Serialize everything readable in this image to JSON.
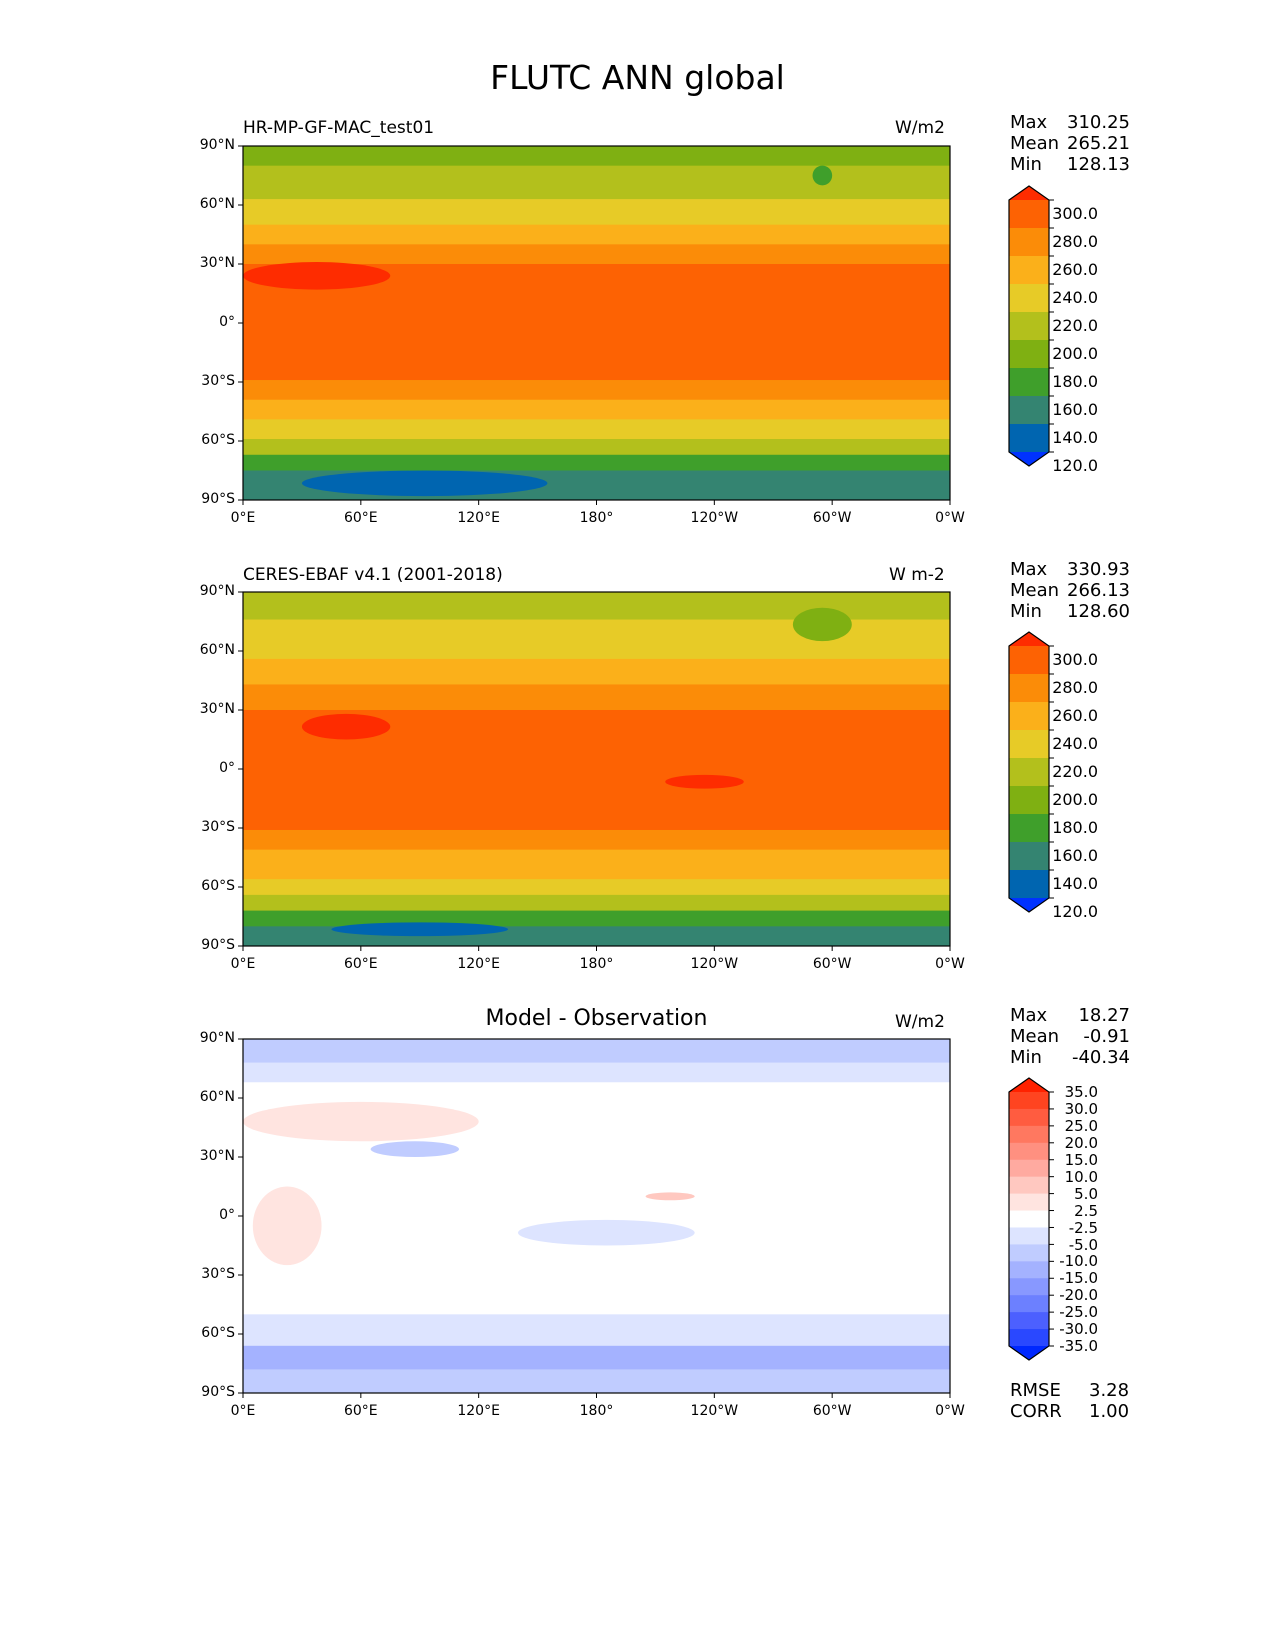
{
  "chart_data": {
    "type": "heatmap",
    "title": "FLUTC ANN global",
    "xticks": [
      "0°E",
      "60°E",
      "120°E",
      "180°",
      "120°W",
      "60°W",
      "0°W"
    ],
    "yticks": [
      "90°N",
      "60°N",
      "30°N",
      "0°",
      "30°S",
      "60°S",
      "90°S"
    ],
    "panels": [
      {
        "title_left": "HR-MP-GF-MAC_test01",
        "title_right": "W/m2",
        "stats": [
          {
            "label": "Max",
            "value": "310.25"
          },
          {
            "label": "Mean",
            "value": "265.21"
          },
          {
            "label": "Min",
            "value": "128.13"
          }
        ],
        "levels": [
          "300.0",
          "280.0",
          "260.0",
          "240.0",
          "220.0",
          "200.0",
          "180.0",
          "160.0",
          "140.0",
          "120.0"
        ],
        "colors": [
          "#fe2c00",
          "#fd6203",
          "#fb8c08",
          "#fbb01a",
          "#e7cb27",
          "#b3c01c",
          "#7fb012",
          "#3f9f2b",
          "#348471",
          "#0065b0",
          "#0032ff"
        ],
        "zonal_bands": [
          [
            90,
            80,
            190
          ],
          [
            80,
            63,
            210
          ],
          [
            63,
            50,
            230
          ],
          [
            50,
            40,
            250
          ],
          [
            40,
            30,
            270
          ],
          [
            30,
            -29,
            290
          ],
          [
            -29,
            -39,
            270
          ],
          [
            -39,
            -49,
            250
          ],
          [
            -49,
            -59,
            230
          ],
          [
            -59,
            -67,
            210
          ],
          [
            -67,
            -75,
            170
          ],
          [
            -75,
            -90,
            150
          ]
        ],
        "patches": [
          {
            "lon": [
              0,
              75
            ],
            "lat": [
              17,
              31
            ],
            "value": 305
          },
          {
            "lon": [
              30,
              155
            ],
            "lat": [
              -75,
              -88
            ],
            "value": 135
          },
          {
            "lon": [
              290,
              300
            ],
            "lat": [
              70,
              80
            ],
            "value": 170
          }
        ]
      },
      {
        "title_left": "CERES-EBAF v4.1 (2001-2018)",
        "title_right": "W m-2",
        "stats": [
          {
            "label": "Max",
            "value": "330.93"
          },
          {
            "label": "Mean",
            "value": "266.13"
          },
          {
            "label": "Min",
            "value": "128.60"
          }
        ],
        "levels": [
          "300.0",
          "280.0",
          "260.0",
          "240.0",
          "220.0",
          "200.0",
          "180.0",
          "160.0",
          "140.0",
          "120.0"
        ],
        "colors": [
          "#fe2c00",
          "#fd6203",
          "#fb8c08",
          "#fbb01a",
          "#e7cb27",
          "#b3c01c",
          "#7fb012",
          "#3f9f2b",
          "#348471",
          "#0065b0",
          "#0032ff"
        ],
        "zonal_bands": [
          [
            90,
            76,
            210
          ],
          [
            76,
            56,
            230
          ],
          [
            56,
            43,
            250
          ],
          [
            43,
            30,
            270
          ],
          [
            30,
            -31,
            290
          ],
          [
            -31,
            -41,
            270
          ],
          [
            -41,
            -56,
            250
          ],
          [
            -56,
            -64,
            230
          ],
          [
            -64,
            -72,
            210
          ],
          [
            -72,
            -80,
            170
          ],
          [
            -80,
            -90,
            150
          ]
        ],
        "patches": [
          {
            "lon": [
              30,
              75
            ],
            "lat": [
              15,
              28
            ],
            "value": 305
          },
          {
            "lon": [
              215,
              255
            ],
            "lat": [
              -3,
              -10
            ],
            "value": 305
          },
          {
            "lon": [
              45,
              135
            ],
            "lat": [
              -78,
              -85
            ],
            "value": 135
          },
          {
            "lon": [
              280,
              310
            ],
            "lat": [
              65,
              82
            ],
            "value": 190
          }
        ]
      },
      {
        "title_center": "Model - Observation",
        "title_right": "W/m2",
        "stats": [
          {
            "label": "Max",
            "value": "18.27"
          },
          {
            "label": "Mean",
            "value": "-0.91"
          },
          {
            "label": "Min",
            "value": "-40.34"
          }
        ],
        "levels": [
          "35.0",
          "30.0",
          "25.0",
          "20.0",
          "15.0",
          "10.0",
          "5.0",
          "2.5",
          "-2.5",
          "-5.0",
          "-10.0",
          "-15.0",
          "-20.0",
          "-25.0",
          "-30.0",
          "-35.0"
        ],
        "colors": [
          "#ff2200",
          "#ff4420",
          "#ff5c40",
          "#ff7860",
          "#ff9080",
          "#ffaaa0",
          "#ffc8c0",
          "#ffe4e0",
          "#ffffff",
          "#dde4ff",
          "#c0ccff",
          "#a4b2ff",
          "#8898ff",
          "#6c80ff",
          "#4c60ff",
          "#2a48ff",
          "#0028ff"
        ],
        "zonal_bands": [
          [
            90,
            78,
            -7
          ],
          [
            78,
            68,
            -3
          ],
          [
            68,
            -50,
            0
          ],
          [
            -50,
            -58,
            -3
          ],
          [
            -58,
            -66,
            -4
          ],
          [
            -66,
            -78,
            -12
          ],
          [
            -78,
            -90,
            -8
          ]
        ],
        "patches": [
          {
            "lon": [
              0,
              120
            ],
            "lat": [
              38,
              58
            ],
            "value": 4
          },
          {
            "lon": [
              5,
              40
            ],
            "lat": [
              -25,
              15
            ],
            "value": 4
          },
          {
            "lon": [
              65,
              110
            ],
            "lat": [
              30,
              38
            ],
            "value": -6
          },
          {
            "lon": [
              140,
              230
            ],
            "lat": [
              -2,
              -15
            ],
            "value": -3
          },
          {
            "lon": [
              205,
              230
            ],
            "lat": [
              8,
              12
            ],
            "value": 7
          }
        ],
        "rmse": {
          "label": "RMSE",
          "value": "3.28"
        },
        "corr": {
          "label": "CORR",
          "value": "1.00"
        }
      }
    ]
  }
}
